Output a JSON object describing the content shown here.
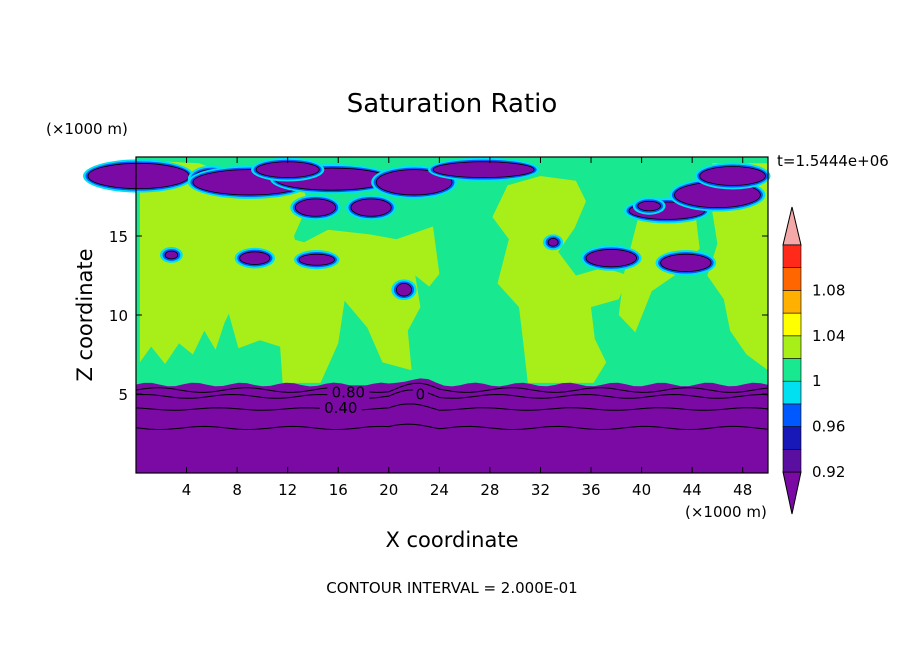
{
  "chart_data": {
    "type": "heatmap",
    "title": "Saturation Ratio",
    "xlabel": "X coordinate",
    "ylabel": "Z coordinate",
    "x_unit": "(×1000 m)",
    "y_unit": "(×1000 m)",
    "time_label": "t=1.5444e+06",
    "footer": "CONTOUR INTERVAL = 2.000E-01",
    "xlim": [
      0,
      50
    ],
    "ylim": [
      0,
      20
    ],
    "x_ticks": [
      "4",
      "8",
      "12",
      "16",
      "20",
      "24",
      "28",
      "32",
      "36",
      "40",
      "44",
      "48"
    ],
    "y_ticks": [
      "5",
      "10",
      "15"
    ],
    "contour_labels": [
      "0.80",
      "0.40",
      "0"
    ],
    "colorbar": {
      "levels": [
        {
          "color": "#5a0fa0",
          "label": "0.92"
        },
        {
          "color": "#1818b8",
          "label": ""
        },
        {
          "color": "#0058ff",
          "label": "0.96"
        },
        {
          "color": "#00e0f0",
          "label": ""
        },
        {
          "color": "#18e890",
          "label": "1"
        },
        {
          "color": "#a8ee18",
          "label": ""
        },
        {
          "color": "#ffff00",
          "label": "1.04"
        },
        {
          "color": "#ffb000",
          "label": ""
        },
        {
          "color": "#ff6600",
          "label": "1.08"
        },
        {
          "color": "#ff2a1a",
          "label": ""
        }
      ],
      "under_color": "#7b0aa5",
      "over_color": "#f4a8a8"
    },
    "fields": {
      "dry_layer": {
        "z_top": 5.6,
        "value": "<0.92",
        "color": "#7b0aa5"
      },
      "upper": {
        "value": "~1",
        "color": "#18e890"
      },
      "moist": {
        "value": "~1.00-1.02",
        "color": "#a8ee18"
      },
      "dry_patches": {
        "color": "#7b0aa5"
      }
    }
  }
}
